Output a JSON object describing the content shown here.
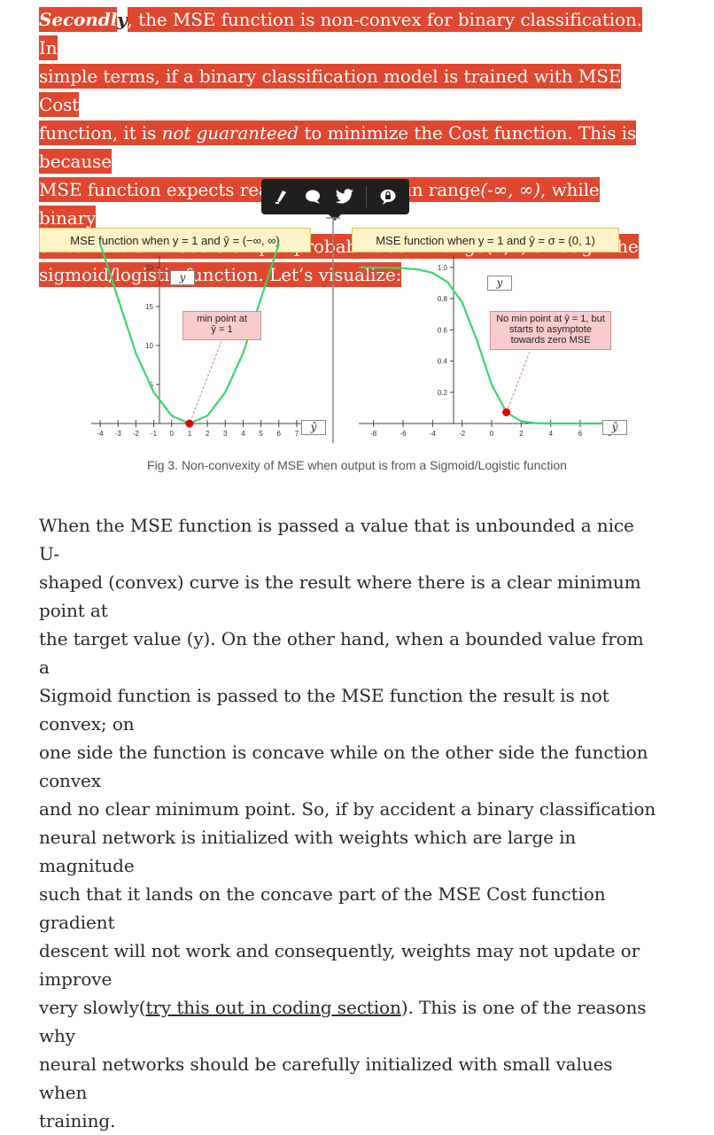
{
  "intro": {
    "lead_highlight": "Secondl",
    "lead_tail": "y",
    "l1": ", the MSE function is non-convex for binary classification. In",
    "l2": "simple terms, if a binary classification model is trained with MSE Cost",
    "l3a": "function, it is ",
    "l3b": "not guaranteed",
    "l3c": " to minimize the Cost function. This is because",
    "l4a": "MSE function expects real-valued inputs in range",
    "l4b": "(-∞, ∞)",
    "l4c": ", while binary",
    "l5": "classification models output probabilities in range(0,1) through the",
    "l6": "sigmoid/logistic function. Let’s visualize:"
  },
  "toolbar": {
    "icons": [
      "highlight-icon",
      "comment-icon",
      "twitter-icon",
      "private-note-icon"
    ]
  },
  "figure": {
    "left_title": "MSE function when y = 1 and ŷ = (−∞, ∞)",
    "right_title": "MSE function when y = 1 and ŷ = σ = (0, 1)",
    "left_annot_l1": "min point at",
    "left_annot_l2": "ŷ = 1",
    "right_annot_l1": "No min point at ŷ = 1, but",
    "right_annot_l2": "starts to asymptote",
    "right_annot_l3": "towards zero MSE",
    "y_label": "y",
    "x_label": "ŷ",
    "caption": "Fig 3. Non-convexity of MSE when output is from a Sigmoid/Logistic function"
  },
  "chart_data": [
    {
      "type": "line",
      "title": "MSE function when y = 1 and ŷ = (−∞, ∞)",
      "xlabel": "ŷ",
      "ylabel": "y",
      "x_ticks": [
        "-4",
        "-3",
        "-2",
        "-1",
        "0",
        "1",
        "2",
        "3",
        "4",
        "5",
        "6",
        "7"
      ],
      "y_ticks": [
        "5",
        "10",
        "15",
        "20"
      ],
      "xlim": [
        -4.5,
        7.5
      ],
      "ylim": [
        0,
        21
      ],
      "series": [
        {
          "x": [
            -4,
            -3,
            -2,
            -1,
            0,
            1,
            2,
            3,
            4,
            5,
            6
          ],
          "values": [
            25,
            16,
            9,
            4,
            1,
            0,
            1,
            4,
            9,
            16,
            25
          ]
        }
      ],
      "annotations": [
        "min point at ŷ = 1"
      ],
      "marker": {
        "x": 1,
        "y": 0
      }
    },
    {
      "type": "line",
      "title": "MSE function when y = 1 and ŷ = σ = (0, 1)",
      "xlabel": "ŷ",
      "ylabel": "y",
      "x_ticks": [
        "-8",
        "-6",
        "-4",
        "-2",
        "0",
        "2",
        "4",
        "6",
        "8"
      ],
      "y_ticks": [
        "0.2",
        "0.4",
        "0.6",
        "0.8",
        "1.0"
      ],
      "xlim": [
        -9,
        9
      ],
      "ylim": [
        0,
        1.05
      ],
      "series": [
        {
          "x": [
            -9,
            -8,
            -7,
            -6,
            -5,
            -4,
            -3,
            -2,
            -1,
            0,
            1,
            2,
            3,
            4,
            5,
            6,
            7,
            8,
            9
          ],
          "values": [
            1.0,
            0.999,
            0.998,
            0.995,
            0.987,
            0.965,
            0.907,
            0.776,
            0.535,
            0.25,
            0.072,
            0.014,
            0.002,
            0.0,
            0.0,
            0.0,
            0.0,
            0.0,
            0.0
          ]
        }
      ],
      "annotations": [
        "No min point at ŷ = 1, but starts to asymptote towards zero MSE"
      ],
      "marker": {
        "x": 1,
        "y": 0.072
      }
    }
  ],
  "body": {
    "l1": "When the MSE function is passed a value that is unbounded a nice U-",
    "l2": "shaped (convex) curve is the result where there is a clear minimum point at",
    "l3": "the target value (y). On the other hand, when a bounded value from a",
    "l4": "Sigmoid function is passed to the MSE function the result is not convex; on",
    "l5": "one side the function is concave while on the other side the function convex",
    "l6": "and no clear minimum point. So, if by accident a binary classification",
    "l7": "neural network is initialized with weights which are large in magnitude",
    "l8": "such that it lands on the concave part of the MSE Cost function gradient",
    "l9": "descent will not work and consequently, weights may not update or improve",
    "l10a": "very slowly(",
    "l10b": "try this out in coding section",
    "l10c": "). This is one of the reasons why",
    "l11": "neural networks should be carefully initialized with small values when",
    "l12": "training."
  }
}
